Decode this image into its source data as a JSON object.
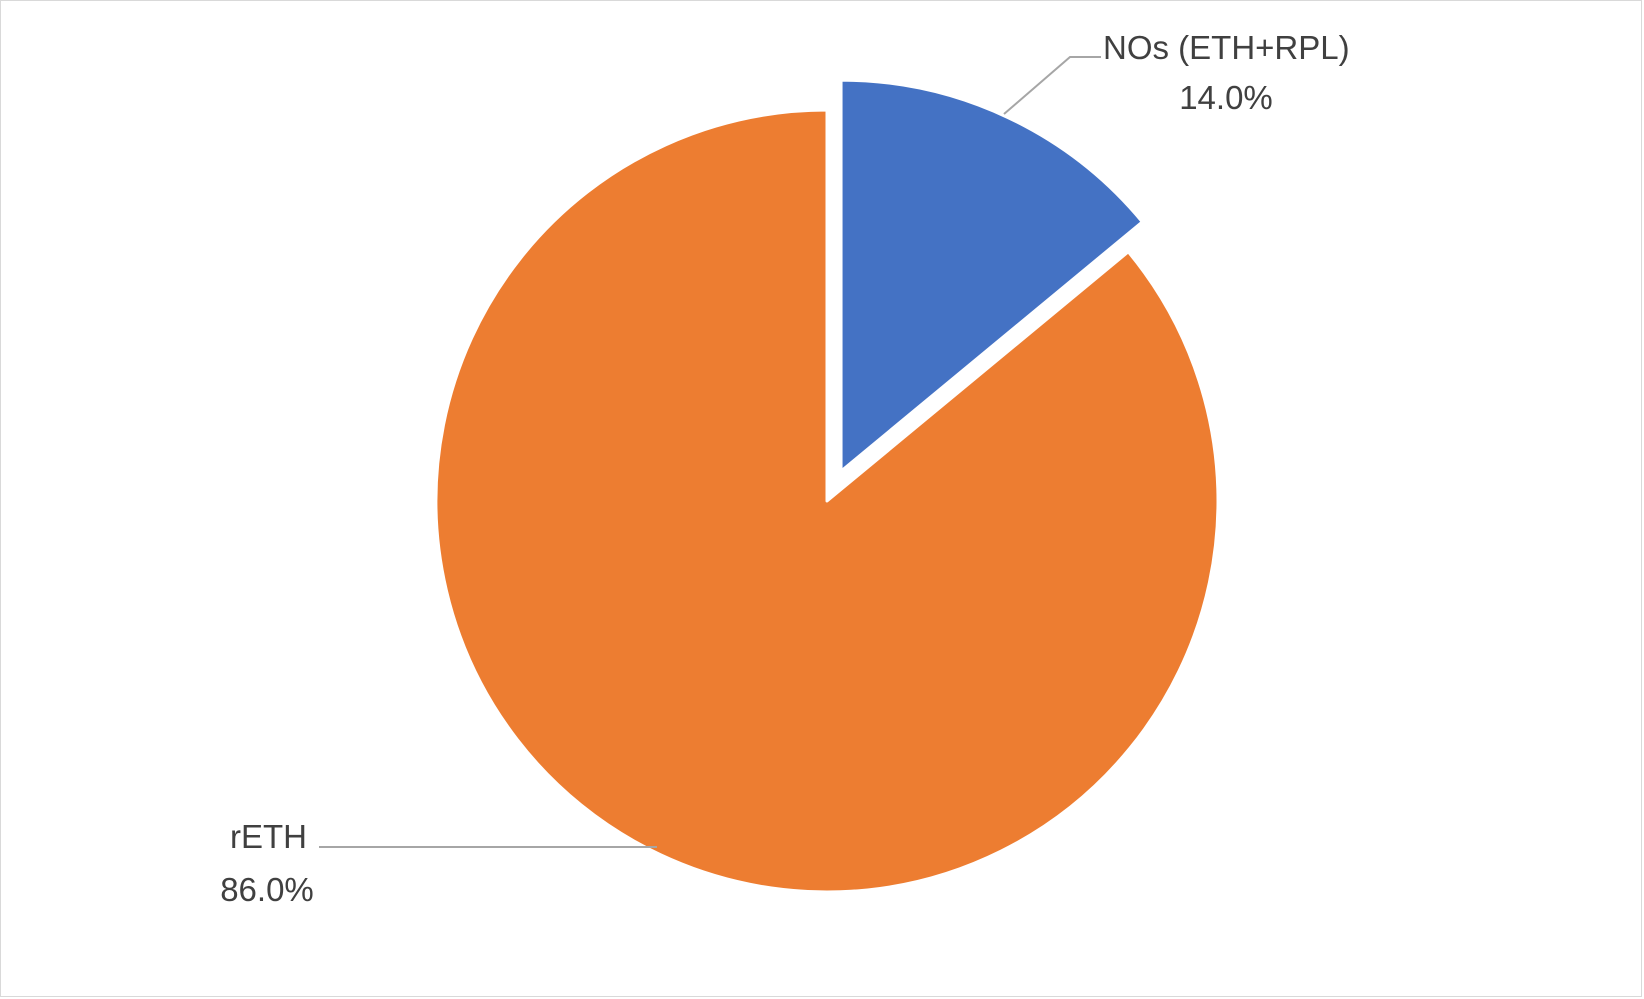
{
  "chart_data": {
    "type": "pie",
    "title": "",
    "slices": [
      {
        "name": "NOs (ETH+RPL)",
        "value": 14.0,
        "label": "14.0%",
        "color": "#4472C4",
        "exploded": true
      },
      {
        "name": "rETH",
        "value": 86.0,
        "label": "86.0%",
        "color": "#ED7D31",
        "exploded": false
      }
    ],
    "start_angle_deg": 0,
    "direction": "clockwise",
    "legend": "none",
    "data_labels": "outside with leader lines"
  }
}
